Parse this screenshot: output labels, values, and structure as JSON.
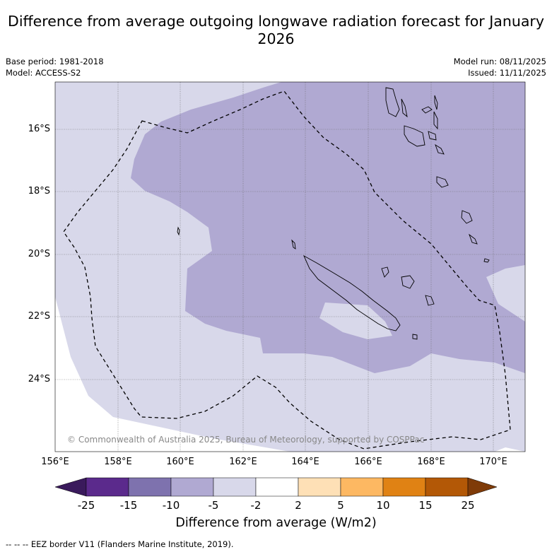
{
  "title": "Difference from average outgoing longwave radiation forecast for January 2026",
  "header_left": [
    "Base period: 1981-2018",
    "Model: ACCESS-S2"
  ],
  "header_right": [
    "Model run: 08/11/2025",
    "Issued: 11/11/2025"
  ],
  "lat_labels": [
    "16°S",
    "18°S",
    "20°S",
    "22°S",
    "24°S"
  ],
  "lon_labels": [
    "156°E",
    "158°E",
    "160°E",
    "162°E",
    "164°E",
    "166°E",
    "168°E",
    "170°E"
  ],
  "copyright": "© Commonwealth of Australia 2025, Bureau of Meteorology, supported by COSPPac",
  "colorbar": {
    "labels": [
      "-25",
      "-15",
      "-10",
      "-5",
      "-2",
      "2",
      "5",
      "10",
      "15",
      "25"
    ],
    "colors": [
      "#3a1a5c",
      "#5b2a8c",
      "#7e72ae",
      "#b0a9d2",
      "#d8d8ea",
      "#ffffff",
      "#fee0b6",
      "#fdb862",
      "#e08214",
      "#b35806",
      "#7f3b08"
    ],
    "title": "Difference from average (W/m2)"
  },
  "legend_footer": "--  --  -- EEZ border V11 (Flanders Marine Institute, 2019).",
  "colors": {
    "light_purple": "#d8d8ea",
    "mid_purple": "#b0a9d2"
  }
}
